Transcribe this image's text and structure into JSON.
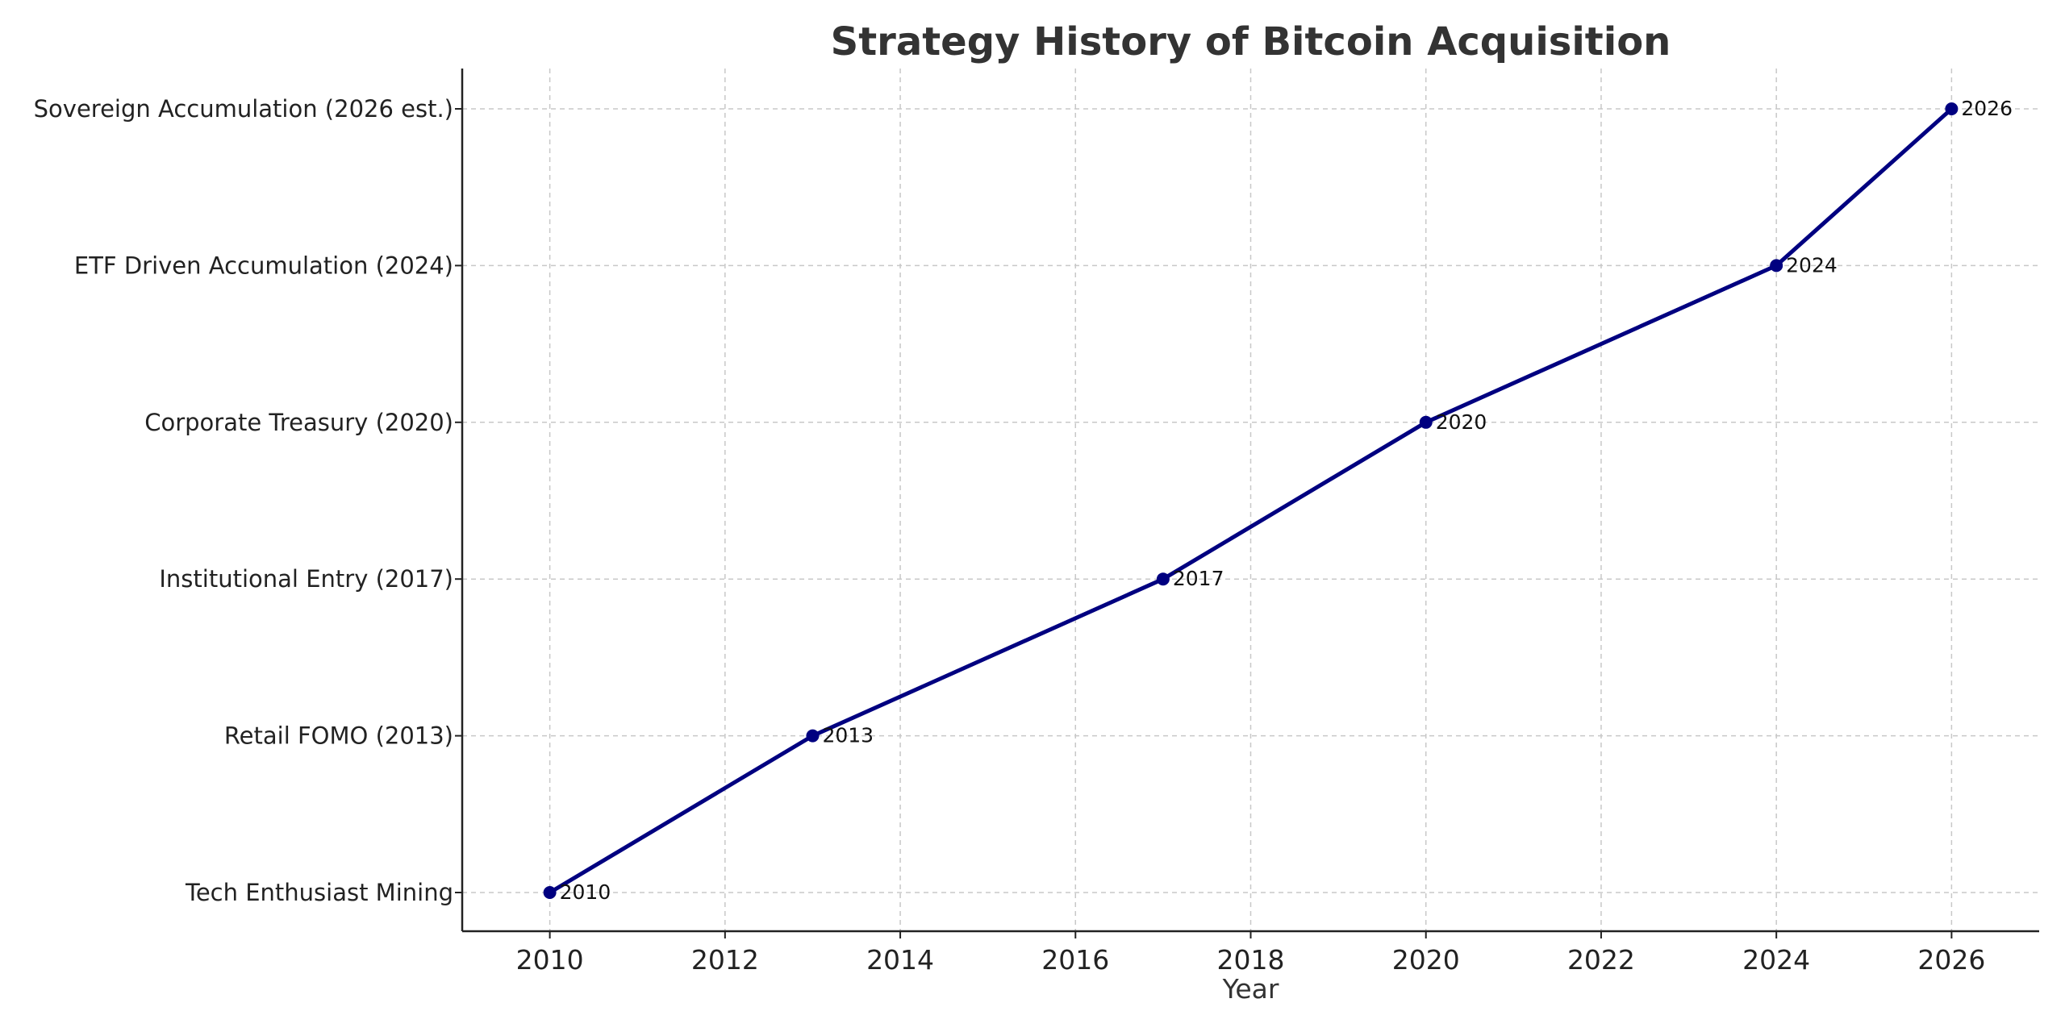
{
  "chart_data": {
    "type": "line",
    "title": "Strategy History of Bitcoin Acquisition",
    "xlabel": "Year",
    "ylabel": "",
    "xlim": [
      2009,
      2027
    ],
    "x_ticks": [
      2010,
      2012,
      2014,
      2016,
      2018,
      2020,
      2022,
      2024,
      2026
    ],
    "categories": [
      "Tech Enthusiast Mining",
      "Retail FOMO (2013)",
      "Institutional Entry (2017)",
      "Corporate Treasury (2020)",
      "ETF Driven Accumulation (2024)",
      "Sovereign Accumulation (2026 est.)"
    ],
    "grid": true,
    "line_color": "#000080",
    "series": [
      {
        "x": [
          2010,
          2013,
          2017,
          2020,
          2024,
          2026
        ],
        "y": [
          "Tech Enthusiast Mining",
          "Retail FOMO (2013)",
          "Institutional Entry (2017)",
          "Corporate Treasury (2020)",
          "ETF Driven Accumulation (2024)",
          "Sovereign Accumulation (2026 est.)"
        ],
        "point_labels": [
          "2010",
          "2013",
          "2017",
          "2020",
          "2024",
          "2026"
        ]
      }
    ]
  }
}
